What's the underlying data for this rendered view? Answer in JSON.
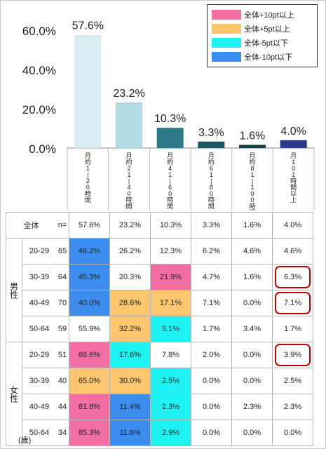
{
  "chart_data": {
    "type": "bar",
    "categories": [
      "月約1～20時間",
      "月約21～40時間",
      "月約41～60時間",
      "月約61～80時間",
      "月約81～100時間",
      "月101時間以上"
    ],
    "values": [
      57.6,
      23.2,
      10.3,
      3.3,
      1.6,
      4.0
    ],
    "value_labels": [
      "57.6%",
      "23.2%",
      "10.3%",
      "3.3%",
      "1.6%",
      "4.0%"
    ],
    "bar_colors": [
      "#d8eef2",
      "#b4dbe3",
      "#2f7a8a",
      "#1d5560",
      "#123f45",
      "#2b3a8a"
    ],
    "ylim": [
      0,
      60
    ],
    "yticks": [
      "0.0%",
      "20.0%",
      "40.0%",
      "60.0%"
    ],
    "ytick_values": [
      0,
      20,
      40,
      60
    ],
    "legend": [
      {
        "label": "全体+10pt以上",
        "color": "#f36ea2"
      },
      {
        "label": "全体+5pt以上",
        "color": "#fcc66e"
      },
      {
        "label": "全体-5pt以下",
        "color": "#1ff2f2"
      },
      {
        "label": "全体-10pt以下",
        "color": "#3b8ef0"
      }
    ],
    "legend_placement": "top-right",
    "table": {
      "total": {
        "label": "全体",
        "n_label": "n=",
        "values": [
          "57.6%",
          "23.2%",
          "10.3%",
          "3.3%",
          "1.6%",
          "4.0%"
        ]
      },
      "groups": [
        {
          "label": "男性",
          "rows": [
            {
              "age": "20-29",
              "n": "65",
              "values": [
                "46.2%",
                "26.2%",
                "12.3%",
                "6.2%",
                "4.6%",
                "4.6%"
              ],
              "colors": [
                "#3b8ef0",
                "",
                "",
                "",
                "",
                ""
              ],
              "circled": [
                false,
                false,
                false,
                false,
                false,
                false
              ]
            },
            {
              "age": "30-39",
              "n": "64",
              "values": [
                "45.3%",
                "20.3%",
                "21.9%",
                "4.7%",
                "1.6%",
                "6.3%"
              ],
              "colors": [
                "#3b8ef0",
                "",
                "#f36ea2",
                "",
                "",
                ""
              ],
              "circled": [
                false,
                false,
                false,
                false,
                false,
                true
              ]
            },
            {
              "age": "40-49",
              "n": "70",
              "values": [
                "40.0%",
                "28.6%",
                "17.1%",
                "7.1%",
                "0.0%",
                "7.1%"
              ],
              "colors": [
                "#3b8ef0",
                "#fcc66e",
                "#fcc66e",
                "",
                "",
                ""
              ],
              "circled": [
                false,
                false,
                false,
                false,
                false,
                true
              ]
            },
            {
              "age": "50-64",
              "n": "59",
              "values": [
                "55.9%",
                "32.2%",
                "5.1%",
                "1.7%",
                "3.4%",
                "1.7%"
              ],
              "colors": [
                "",
                "#fcc66e",
                "#1ff2f2",
                "",
                "",
                ""
              ],
              "circled": [
                false,
                false,
                false,
                false,
                false,
                false
              ]
            }
          ]
        },
        {
          "label": "女性",
          "rows": [
            {
              "age": "20-29",
              "n": "51",
              "values": [
                "68.6%",
                "17.6%",
                "7.8%",
                "2.0%",
                "0.0%",
                "3.9%"
              ],
              "colors": [
                "#f36ea2",
                "#1ff2f2",
                "",
                "",
                "",
                ""
              ],
              "circled": [
                false,
                false,
                false,
                false,
                false,
                true
              ]
            },
            {
              "age": "30-39",
              "n": "40",
              "values": [
                "65.0%",
                "30.0%",
                "2.5%",
                "0.0%",
                "0.0%",
                "2.5%"
              ],
              "colors": [
                "#fcc66e",
                "#fcc66e",
                "#1ff2f2",
                "",
                "",
                ""
              ],
              "circled": [
                false,
                false,
                false,
                false,
                false,
                false
              ]
            },
            {
              "age": "40-49",
              "n": "44",
              "values": [
                "81.8%",
                "11.4%",
                "2.3%",
                "0.0%",
                "2.3%",
                "2.3%"
              ],
              "colors": [
                "#f36ea2",
                "#3b8ef0",
                "#1ff2f2",
                "",
                "",
                ""
              ],
              "circled": [
                false,
                false,
                false,
                false,
                false,
                false
              ]
            },
            {
              "age": "50-64",
              "n": "34",
              "values": [
                "85.3%",
                "11.8%",
                "2.9%",
                "0.0%",
                "0.0%",
                "0.0%"
              ],
              "colors": [
                "#f36ea2",
                "#3b8ef0",
                "#1ff2f2",
                "",
                "",
                ""
              ],
              "circled": [
                false,
                false,
                false,
                false,
                false,
                false
              ]
            }
          ]
        }
      ],
      "unit_label": "(歳)"
    }
  }
}
